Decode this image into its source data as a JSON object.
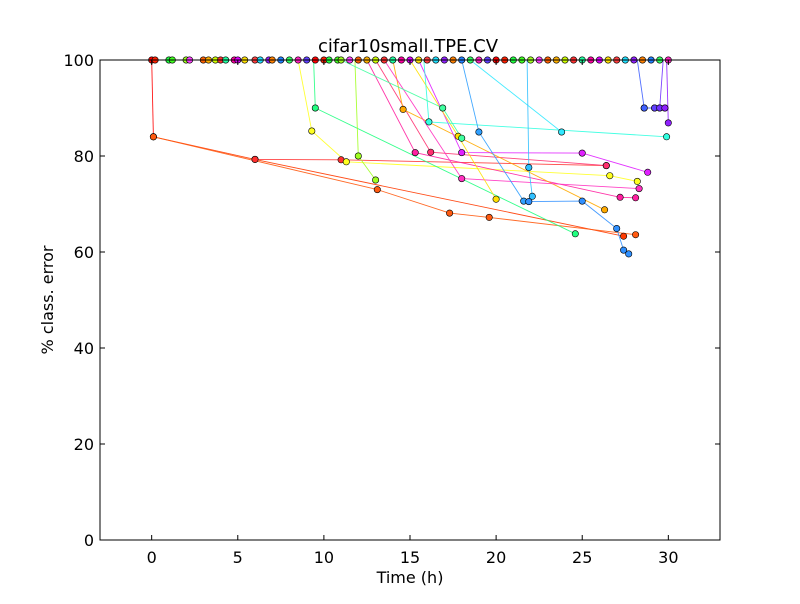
{
  "chart_data": {
    "type": "line",
    "title": "cifar10small.TPE.CV",
    "xlabel": "Time (h)",
    "ylabel": "% class. error",
    "xlim": [
      -3,
      33
    ],
    "ylim": [
      0,
      100
    ],
    "xticks": [
      0,
      5,
      10,
      15,
      20,
      25,
      30
    ],
    "yticks": [
      0,
      20,
      40,
      60,
      80,
      100
    ],
    "grid": false,
    "legend": "none",
    "series": [
      {
        "color": "#ff0000",
        "points": [
          [
            0.0,
            100
          ],
          [
            0.1,
            84
          ]
        ]
      },
      {
        "color": "#ff3a00",
        "points": [
          [
            0.1,
            84
          ],
          [
            6.0,
            79.3
          ],
          [
            27.4,
            63.3
          ]
        ]
      },
      {
        "color": "#ff5a10",
        "points": [
          [
            0.1,
            84
          ],
          [
            13.1,
            73
          ],
          [
            17.3,
            68.1
          ],
          [
            19.6,
            67.2
          ],
          [
            28.1,
            63.6
          ]
        ]
      },
      {
        "color": "#ff3030",
        "points": [
          [
            6.0,
            79.3
          ],
          [
            11.0,
            79.2
          ],
          [
            26.4,
            78
          ]
        ]
      },
      {
        "color": "#ffff20",
        "points": [
          [
            8.5,
            100
          ],
          [
            9.3,
            85.2
          ],
          [
            11.3,
            78.8
          ],
          [
            26.6,
            75.9
          ],
          [
            28.2,
            74.7
          ]
        ]
      },
      {
        "color": "#20ff80",
        "points": [
          [
            9.4,
            100
          ],
          [
            9.5,
            90
          ],
          [
            24.6,
            63.8
          ]
        ]
      },
      {
        "color": "#a0ff20",
        "points": [
          [
            11.8,
            100
          ],
          [
            12.0,
            80
          ],
          [
            13.0,
            75
          ]
        ]
      },
      {
        "color": "#ff20a0",
        "points": [
          [
            12.5,
            100
          ],
          [
            15.3,
            80.7
          ],
          [
            27.2,
            71.4
          ],
          [
            28.1,
            71.3
          ]
        ]
      },
      {
        "color": "#ff3070",
        "points": [
          [
            13.0,
            100
          ],
          [
            16.2,
            80.8
          ],
          [
            26.4,
            78.0
          ]
        ]
      },
      {
        "color": "#ffaa00",
        "points": [
          [
            14.0,
            100
          ],
          [
            14.6,
            89.7
          ],
          [
            26.3,
            68.8
          ]
        ]
      },
      {
        "color": "#ff30c0",
        "points": [
          [
            13.5,
            100
          ],
          [
            18.0,
            75.3
          ],
          [
            28.3,
            73.2
          ]
        ]
      },
      {
        "color": "#e020ff",
        "points": [
          [
            15.5,
            100
          ],
          [
            18.0,
            80.7
          ],
          [
            25.0,
            80.6
          ],
          [
            28.8,
            76.6
          ]
        ]
      },
      {
        "color": "#ffe000",
        "points": [
          [
            15.0,
            100
          ],
          [
            17.8,
            84.1
          ],
          [
            20.0,
            71.0
          ]
        ]
      },
      {
        "color": "#30ffe0",
        "points": [
          [
            15.8,
            100
          ],
          [
            16.1,
            87.1
          ],
          [
            29.9,
            84
          ]
        ]
      },
      {
        "color": "#40ffa0",
        "points": [
          [
            11.0,
            100
          ],
          [
            16.9,
            90
          ],
          [
            18.0,
            83.7
          ]
        ]
      },
      {
        "color": "#30e8ff",
        "points": [
          [
            18.5,
            100
          ],
          [
            23.8,
            85
          ]
        ]
      },
      {
        "color": "#30a0ff",
        "points": [
          [
            18.0,
            100
          ],
          [
            19.0,
            85
          ],
          [
            21.6,
            70.6
          ]
        ]
      },
      {
        "color": "#30c0ff",
        "points": [
          [
            21.8,
            100
          ],
          [
            21.9,
            77.6
          ],
          [
            22.1,
            71.6
          ]
        ]
      },
      {
        "color": "#3090ff",
        "points": [
          [
            21.9,
            70.5
          ],
          [
            25.0,
            70.6
          ],
          [
            27.0,
            64.9
          ],
          [
            27.4,
            60.4
          ],
          [
            27.7,
            59.6
          ]
        ]
      },
      {
        "color": "#4060ff",
        "points": [
          [
            28.2,
            100
          ],
          [
            28.6,
            90
          ],
          [
            29.2,
            90
          ]
        ]
      },
      {
        "color": "#7030ff",
        "points": [
          [
            29.7,
            100
          ],
          [
            29.5,
            90
          ],
          [
            29.8,
            90
          ]
        ]
      },
      {
        "color": "#9020ff",
        "points": [
          [
            29.9,
            100
          ],
          [
            30.0,
            86.9
          ]
        ]
      }
    ],
    "top_row_markers": {
      "y": 100,
      "x": [
        0.0,
        0.2,
        1.0,
        1.2,
        2.0,
        2.2,
        3.0,
        3.3,
        3.7,
        4.0,
        4.3,
        4.8,
        5.0,
        5.4,
        6.0,
        6.3,
        6.8,
        7.0,
        7.5,
        8.0,
        8.5,
        9.0,
        9.5,
        10.0,
        10.3,
        10.8,
        11.0,
        11.5,
        12.0,
        12.5,
        13.0,
        13.5,
        14.0,
        14.5,
        15.0,
        15.5,
        16.0,
        16.5,
        17.0,
        17.5,
        18.0,
        18.5,
        19.0,
        19.5,
        20.0,
        20.5,
        21.0,
        21.5,
        22.0,
        22.5,
        23.0,
        23.5,
        24.0,
        24.5,
        25.0,
        25.5,
        26.0,
        26.5,
        27.0,
        27.5,
        28.0,
        28.5,
        29.0,
        29.5,
        30.0
      ],
      "colors": [
        "#ff0000",
        "#ff2000",
        "#20ff40",
        "#40ff20",
        "#a0ff20",
        "#ff40ff",
        "#ff6000",
        "#ffb000",
        "#d0ff00",
        "#ff3030",
        "#20ffa0",
        "#ff00a0",
        "#e000ff",
        "#ffe000",
        "#ff4040",
        "#20e0ff",
        "#9020ff",
        "#ff8000",
        "#2080ff",
        "#30ff60",
        "#ff20c0",
        "#6040ff"
      ]
    },
    "bottom_row_markers": {
      "y": 90,
      "x": [
        28.6,
        29.2,
        29.5,
        29.8
      ],
      "colors": [
        "#4060ff",
        "#6040ff",
        "#7030ff",
        "#9020ff"
      ]
    }
  }
}
